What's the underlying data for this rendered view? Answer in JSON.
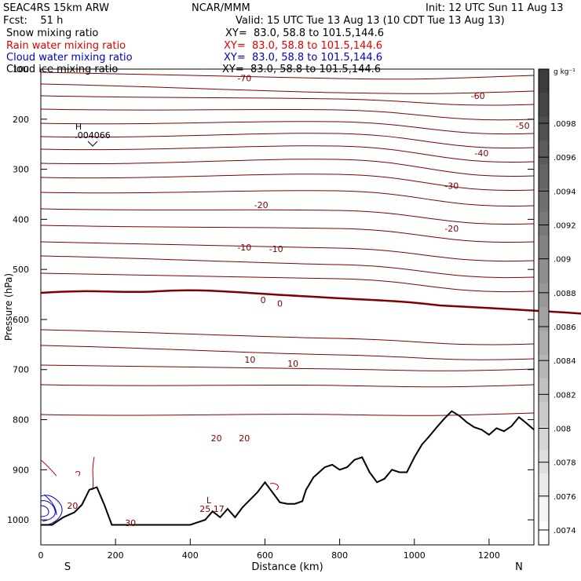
{
  "header": {
    "title": "SEAC4RS 15km ARW",
    "forecast": "Fcst:    51 h",
    "center": "NCAR/MMM",
    "init": "Init: 12 UTC Sun 11 Aug 13",
    "valid": "Valid: 15 UTC Tue 13 Aug 13 (10 CDT Tue 13 Aug 13)"
  },
  "fields": [
    {
      "label": "Snow mixing ratio",
      "xy": "XY=  83.0, 58.8 to 101.5,144.6",
      "color": "#000000"
    },
    {
      "label": "Rain water mixing ratio",
      "xy": "XY=  83.0, 58.8 to 101.5,144.6",
      "color": "#e00000"
    },
    {
      "label": "Cloud water mixing ratio",
      "xy": "XY=  83.0, 58.8 to 101.5,144.6",
      "color": "#0000c8"
    },
    {
      "label": "Cloud ice mixing ratio",
      "xy": "XY=  83.0, 58.8 to 101.5,144.6",
      "color": "#000000"
    }
  ],
  "colorbar": {
    "unit": "g kg⁻¹",
    "labels": [
      ".0098",
      ".0096",
      ".0094",
      ".0092",
      ".009",
      ".0088",
      ".0086",
      ".0084",
      ".0082",
      ".008",
      ".0078",
      ".0076",
      ".0074"
    ]
  },
  "markers": {
    "high": {
      "letter": "H",
      "value": ".004066"
    },
    "low": {
      "letter": "L",
      "value": "25.17"
    }
  },
  "chart_data": {
    "type": "contour cross-section",
    "xlabel": "Distance (km)",
    "ylabel": "Pressure (hPa)",
    "xlim": [
      0,
      1320
    ],
    "ylim": [
      1050,
      100
    ],
    "x_ticks": [
      0,
      200,
      400,
      600,
      800,
      1000,
      1200
    ],
    "y_ticks": [
      100,
      200,
      300,
      400,
      500,
      600,
      700,
      800,
      900,
      1000
    ],
    "x_end_labels": {
      "left": "S",
      "right": "N"
    },
    "temperature_contour_labels": [
      {
        "label": "-70",
        "x": 545,
        "p": 118
      },
      {
        "label": "-60",
        "x": 1170,
        "p": 153
      },
      {
        "label": "-50",
        "x": 1290,
        "p": 213
      },
      {
        "label": "-40",
        "x": 1180,
        "p": 268
      },
      {
        "label": "-30",
        "x": 1100,
        "p": 333
      },
      {
        "label": "-20",
        "x": 590,
        "p": 371
      },
      {
        "label": "-20",
        "x": 1100,
        "p": 418
      },
      {
        "label": "-10",
        "x": 545,
        "p": 456
      },
      {
        "label": "-10",
        "x": 630,
        "p": 459
      },
      {
        "label": "0",
        "x": 595,
        "p": 561
      },
      {
        "label": "0",
        "x": 640,
        "p": 568
      },
      {
        "label": "10",
        "x": 560,
        "p": 680
      },
      {
        "label": "10",
        "x": 675,
        "p": 688
      },
      {
        "label": "20",
        "x": 470,
        "p": 837
      },
      {
        "label": "20",
        "x": 545,
        "p": 837
      },
      {
        "label": "20",
        "x": 85,
        "p": 972
      },
      {
        "label": "30",
        "x": 240,
        "p": 1006
      }
    ],
    "terrain_surface": {
      "x": [
        0,
        30,
        60,
        90,
        110,
        130,
        150,
        170,
        190,
        200,
        250,
        300,
        350,
        400,
        440,
        460,
        480,
        500,
        520,
        540,
        560,
        580,
        600,
        620,
        640,
        660,
        680,
        700,
        710,
        730,
        760,
        780,
        800,
        820,
        840,
        860,
        880,
        900,
        920,
        940,
        960,
        980,
        1000,
        1020,
        1040,
        1060,
        1080,
        1100,
        1120,
        1140,
        1160,
        1180,
        1200,
        1220,
        1240,
        1260,
        1280,
        1300,
        1320
      ],
      "p": [
        1010,
        1010,
        995,
        985,
        970,
        940,
        935,
        970,
        1010,
        1010,
        1010,
        1010,
        1010,
        1010,
        1000,
        983,
        995,
        978,
        995,
        975,
        960,
        945,
        925,
        945,
        965,
        968,
        968,
        963,
        940,
        915,
        895,
        890,
        900,
        895,
        880,
        875,
        905,
        925,
        918,
        900,
        905,
        905,
        875,
        850,
        833,
        815,
        798,
        783,
        792,
        805,
        815,
        820,
        830,
        817,
        823,
        813,
        795,
        807,
        820
      ]
    }
  }
}
